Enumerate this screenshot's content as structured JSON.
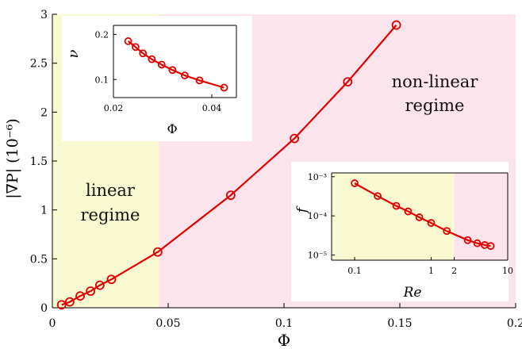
{
  "colors": {
    "linear_region": "#fafad2",
    "nonlinear_region": "#fce4ec",
    "series": "#e00000"
  },
  "chart_data": [
    {
      "type": "line",
      "xlabel": "Φ",
      "ylabel": "|∇P| (10⁻⁶)",
      "xlim": [
        0,
        0.2
      ],
      "ylim": [
        0,
        3
      ],
      "xticks": [
        "0",
        "0.05",
        "0.1",
        "0.15",
        "0.2"
      ],
      "yticks": [
        "0",
        "0.5",
        "1",
        "1.5",
        "2",
        "2.5",
        "3"
      ],
      "x": [
        0.004,
        0.0075,
        0.012,
        0.0165,
        0.0205,
        0.0255,
        0.0455,
        0.077,
        0.1045,
        0.1275,
        0.1485
      ],
      "y": [
        0.03,
        0.06,
        0.12,
        0.17,
        0.23,
        0.29,
        0.57,
        1.15,
        1.73,
        2.31,
        2.89
      ],
      "regions": [
        {
          "label_lines": [
            "linear",
            "regime"
          ],
          "xrange": [
            0,
            0.046
          ]
        },
        {
          "label_lines": [
            "non-linear",
            "regime"
          ],
          "xrange": [
            0.046,
            0.2
          ]
        }
      ]
    },
    {
      "type": "line",
      "xlabel": "Φ",
      "ylabel": "ν",
      "xlim": [
        0.02,
        0.045
      ],
      "ylim": [
        0.06,
        0.22
      ],
      "xticks": [
        "0.02",
        "0.04"
      ],
      "yticks": [
        "0.1",
        "0.2"
      ],
      "x": [
        0.023,
        0.0245,
        0.026,
        0.0278,
        0.0298,
        0.032,
        0.0345,
        0.0375,
        0.0425
      ],
      "y": [
        0.185,
        0.172,
        0.158,
        0.145,
        0.133,
        0.121,
        0.109,
        0.098,
        0.082
      ]
    },
    {
      "type": "line",
      "xlabel": "Re",
      "ylabel": "f",
      "xscale": "log",
      "yscale": "log",
      "xlim": [
        0.05,
        10
      ],
      "ylim": [
        7.4e-06,
        0.00125
      ],
      "xticks": [
        "0.1",
        "1",
        "2",
        "10"
      ],
      "yticks": [
        "10⁻³",
        "10⁻⁴",
        "10⁻⁵"
      ],
      "x": [
        0.1,
        0.2,
        0.35,
        0.5,
        0.7,
        1.0,
        1.6,
        3.0,
        4.0,
        5.0,
        6.0
      ],
      "y": [
        0.00068,
        0.00032,
        0.00018,
        0.00013,
        9.2e-05,
        6.6e-05,
        4.1e-05,
        2.4e-05,
        2e-05,
        1.8e-05,
        1.7e-05
      ],
      "regions": [
        {
          "xrange": [
            0.05,
            2
          ]
        },
        {
          "xrange": [
            2,
            10
          ]
        }
      ]
    }
  ]
}
